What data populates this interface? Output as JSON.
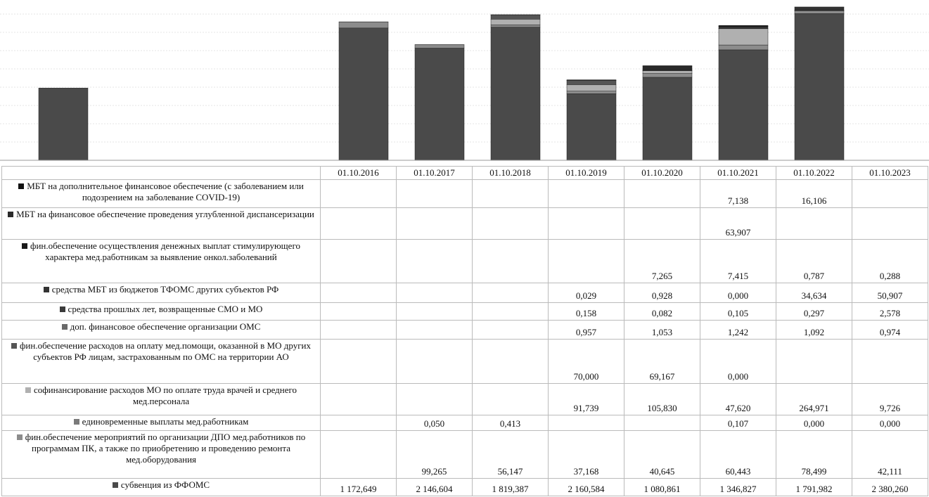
{
  "chart_data": {
    "type": "bar",
    "categories": [
      "01.10.2016",
      "01.10.2017",
      "01.10.2018",
      "01.10.2019",
      "01.10.2020",
      "01.10.2021",
      "01.10.2022",
      "01.10.2023"
    ],
    "series": [
      {
        "name": "МБТ на дополнительное финансовое обеспечение (с заболеванием или подозрением на заболевание COVID-19)",
        "color": "#111111",
        "values": [
          null,
          null,
          null,
          null,
          null,
          7.138,
          16.106,
          null
        ],
        "value_labels": [
          null,
          null,
          null,
          null,
          null,
          "7,138",
          "16,106",
          null
        ]
      },
      {
        "name": "МБТ на финансовое обеспечение проведения углубленной диспансеризации",
        "color": "#2a2a2a",
        "values": [
          null,
          null,
          null,
          null,
          null,
          63.907,
          null,
          null
        ],
        "value_labels": [
          null,
          null,
          null,
          null,
          null,
          "63,907",
          null,
          null
        ]
      },
      {
        "name": "фин.обеспечение осуществления денежных выплат стимулирующего характера мед.работникам за выявление онкол.заболеваний",
        "color": "#1a1a1a",
        "values": [
          null,
          null,
          null,
          null,
          7.265,
          7.415,
          0.787,
          0.288
        ],
        "value_labels": [
          null,
          null,
          null,
          null,
          "7,265",
          "7,415",
          "0,787",
          "0,288"
        ]
      },
      {
        "name": "средства МБТ из бюджетов ТФОМС других субъектов РФ",
        "color": "#333333",
        "values": [
          null,
          null,
          null,
          0.029,
          0.928,
          0.0,
          34.634,
          50.907
        ],
        "value_labels": [
          null,
          null,
          null,
          "0,029",
          "0,928",
          "0,000",
          "34,634",
          "50,907"
        ]
      },
      {
        "name": "средства прошлых лет, возвращенные СМО и МО",
        "color": "#3a3a3a",
        "values": [
          null,
          null,
          null,
          0.158,
          0.082,
          0.105,
          0.297,
          2.578
        ],
        "value_labels": [
          null,
          null,
          null,
          "0,158",
          "0,082",
          "0,105",
          "0,297",
          "2,578"
        ]
      },
      {
        "name": "доп. финансовое обеспечение организации ОМС",
        "color": "#6a6a6a",
        "values": [
          null,
          null,
          null,
          0.957,
          1.053,
          1.242,
          1.092,
          0.974
        ],
        "value_labels": [
          null,
          null,
          null,
          "0,957",
          "1,053",
          "1,242",
          "1,092",
          "0,974"
        ]
      },
      {
        "name": "фин.обеспечение расходов на оплату мед.помощи, оказанной в МО других субъектов РФ лицам, застрахованным по ОМС на территории АО",
        "color": "#555555",
        "values": [
          null,
          null,
          null,
          70.0,
          69.167,
          0.0,
          null,
          null
        ],
        "value_labels": [
          null,
          null,
          null,
          "70,000",
          "69,167",
          "0,000",
          null,
          null
        ]
      },
      {
        "name": "софинансирование расходов МО по оплате труда врачей и среднего мед.персонала",
        "color": "#b0b0b0",
        "values": [
          null,
          null,
          null,
          91.739,
          105.83,
          47.62,
          264.971,
          9.726
        ],
        "value_labels": [
          null,
          null,
          null,
          "91,739",
          "105,830",
          "47,620",
          "264,971",
          "9,726"
        ]
      },
      {
        "name": "единовременные выплаты мед.работникам",
        "color": "#7a7a7a",
        "values": [
          null,
          0.05,
          0.413,
          null,
          null,
          0.107,
          0.0,
          0.0
        ],
        "value_labels": [
          null,
          "0,050",
          "0,413",
          null,
          null,
          "0,107",
          "0,000",
          "0,000"
        ]
      },
      {
        "name": "фин.обеспечение мероприятий по организации ДПО мед.работников по программам ПК, а также по приобретению и проведению ремонта мед.оборудования",
        "color": "#8c8c8c",
        "values": [
          null,
          99.265,
          56.147,
          37.168,
          40.645,
          60.443,
          78.499,
          42.111
        ],
        "value_labels": [
          null,
          "99,265",
          "56,147",
          "37,168",
          "40,645",
          "60,443",
          "78,499",
          "42,111"
        ]
      },
      {
        "name": "субвенция из ФФОМС",
        "color": "#4a4a4a",
        "values": [
          1172.649,
          2146.604,
          1819.387,
          2160.584,
          1080.861,
          1346.827,
          1791.982,
          2380.26
        ],
        "value_labels": [
          "1 172,649",
          "2 146,604",
          "1 819,387",
          "2 160,584",
          "1 080,861",
          "1 346,827",
          "1 791,982",
          "2 380,260"
        ]
      }
    ]
  }
}
